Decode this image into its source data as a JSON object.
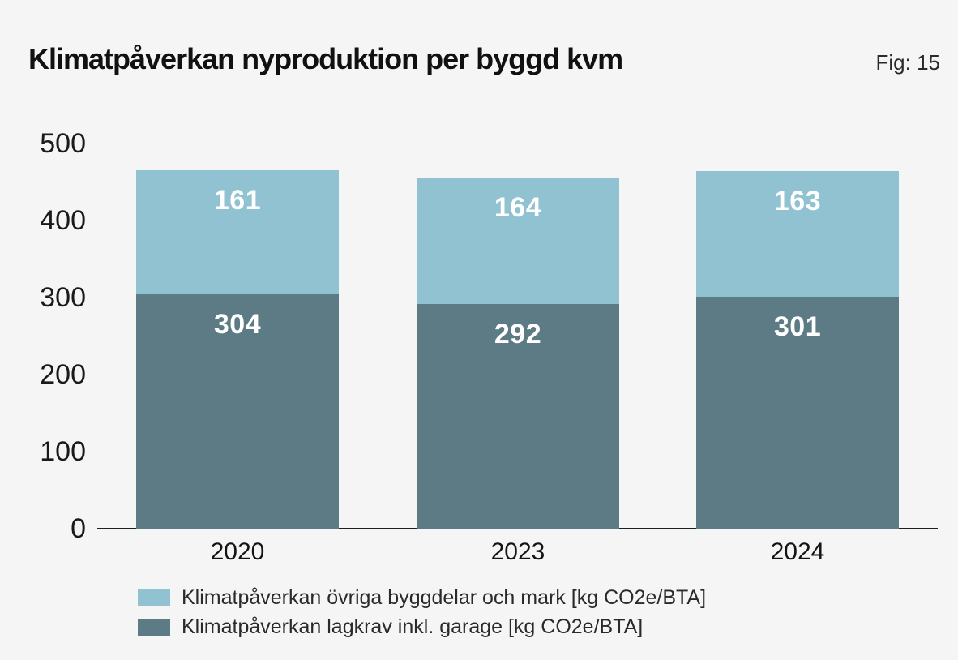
{
  "header": {
    "title": "Klimatpåverkan nyproduktion per byggd kvm",
    "fig_label": "Fig: 15"
  },
  "chart_data": {
    "type": "bar",
    "stacked": true,
    "title": "Klimatpåverkan nyproduktion per byggd kvm",
    "categories": [
      "2020",
      "2023",
      "2024"
    ],
    "series": [
      {
        "name": "Klimatpåverkan lagkrav inkl. garage [kg CO2e/BTA]",
        "color": "#5d7b85",
        "values": [
          304,
          292,
          301
        ]
      },
      {
        "name": "Klimatpåverkan övriga byggdelar och mark [kg CO2e/BTA]",
        "color": "#91c2d2",
        "values": [
          161,
          164,
          163
        ]
      }
    ],
    "ylim": [
      0,
      500
    ],
    "yticks": [
      0,
      100,
      200,
      300,
      400,
      500
    ],
    "grid": true,
    "value_labels_shown": true,
    "value_label_color": "#ffffff",
    "legend_position": "bottom-left",
    "legend": [
      {
        "label": "Klimatpåverkan övriga byggdelar och mark [kg CO2e/BTA]",
        "color": "#91c2d2"
      },
      {
        "label": "Klimatpåverkan lagkrav inkl. garage [kg CO2e/BTA]",
        "color": "#5d7b85"
      }
    ]
  },
  "colors": {
    "background": "#f6f5f5",
    "grid_line": "#1f1f1f"
  }
}
